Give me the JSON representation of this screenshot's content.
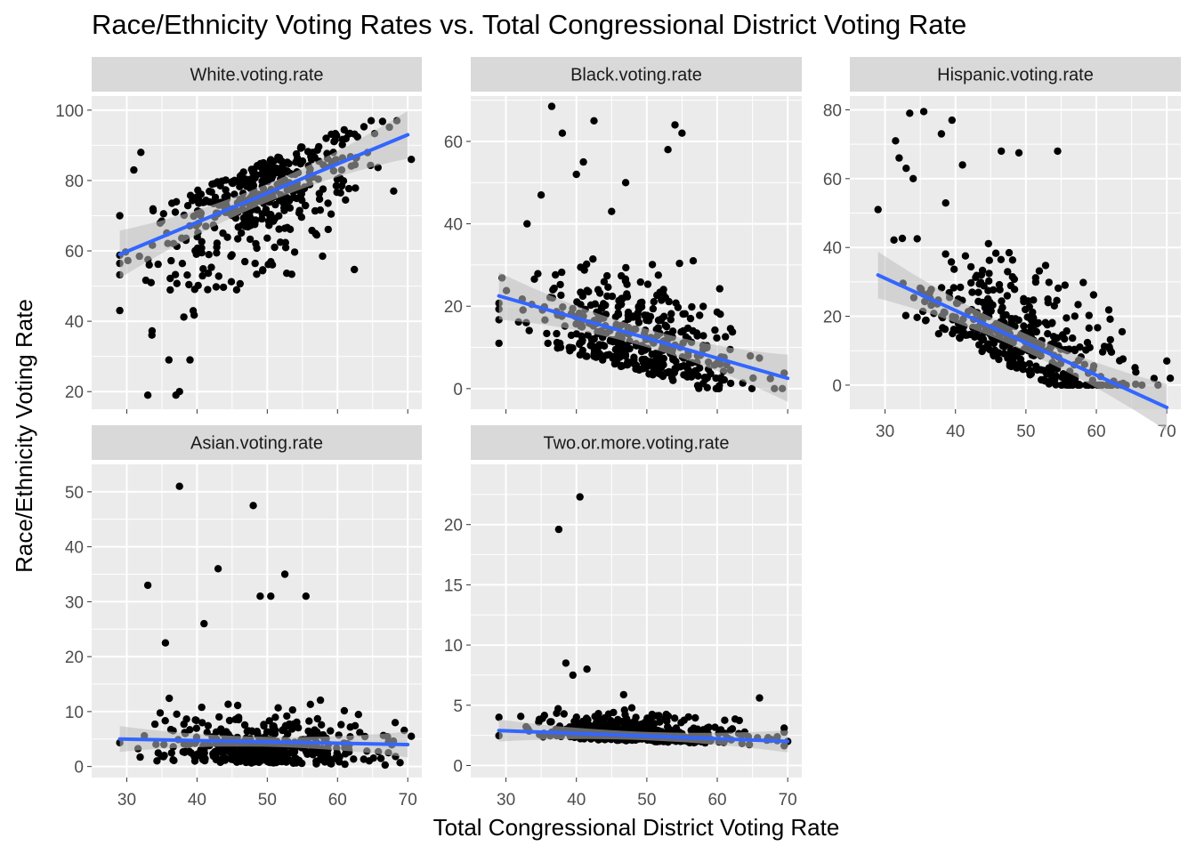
{
  "title": "Race/Ethnicity Voting Rates vs. Total Congressional District Voting Rate",
  "xlabel": "Total Congressional District Voting Rate",
  "ylabel": "Race/Ethnicity Voting Rate",
  "colors": {
    "panel_bg": "#ebebeb",
    "strip_bg": "#d9d9d9",
    "grid": "#ffffff",
    "point": "#000000",
    "fit_line": "#3366ff",
    "ribbon": "#bdbdbd"
  },
  "chart_data": [
    {
      "type": "scatter",
      "facet": "White.voting.rate",
      "xlim": [
        25,
        72
      ],
      "ylim": [
        15,
        104
      ],
      "x_ticks": [
        30,
        40,
        50,
        60,
        70
      ],
      "y_ticks": [
        20,
        40,
        60,
        80,
        100
      ],
      "x_tick_labels_shown": false,
      "trend": {
        "x": [
          29,
          70
        ],
        "y": [
          59,
          93
        ],
        "se": 2.6
      },
      "cluster": {
        "x_mean": 49,
        "x_sd": 7.5,
        "y_mean": 78,
        "y_sd": 15,
        "slope": 0.83,
        "n": 430,
        "ymin": 19,
        "ymax": 97
      },
      "highlights": [
        [
          37,
          19
        ],
        [
          37.5,
          20
        ],
        [
          33,
          19
        ],
        [
          70.5,
          86
        ],
        [
          68,
          77
        ],
        [
          29,
          70
        ],
        [
          31,
          83
        ],
        [
          32,
          88
        ],
        [
          36,
          29
        ],
        [
          39,
          29
        ]
      ]
    },
    {
      "type": "scatter",
      "facet": "Black.voting.rate",
      "xlim": [
        25,
        72
      ],
      "ylim": [
        -5,
        71
      ],
      "x_ticks": [
        30,
        40,
        50,
        60,
        70
      ],
      "y_ticks": [
        0,
        20,
        40,
        60
      ],
      "x_tick_labels_shown": false,
      "trend": {
        "x": [
          29,
          70
        ],
        "y": [
          22.5,
          2.5
        ],
        "se": 2.2
      },
      "cluster": {
        "x_mean": 49,
        "x_sd": 7.5,
        "y_mean": 10,
        "y_sd": 10,
        "slope": -0.49,
        "n": 430,
        "ymin": 0,
        "ymax": 68
      },
      "highlights": [
        [
          36.5,
          68.5
        ],
        [
          38,
          62
        ],
        [
          40,
          52
        ],
        [
          41,
          55
        ],
        [
          42.5,
          65
        ],
        [
          54,
          64
        ],
        [
          55,
          62
        ],
        [
          53,
          58
        ],
        [
          47,
          50
        ],
        [
          45,
          43
        ],
        [
          35,
          47
        ],
        [
          33,
          40
        ],
        [
          29,
          11
        ]
      ]
    },
    {
      "type": "scatter",
      "facet": "Hispanic.voting.rate",
      "xlim": [
        25,
        72
      ],
      "ylim": [
        -7,
        84
      ],
      "x_ticks": [
        30,
        40,
        50,
        60,
        70
      ],
      "y_ticks": [
        0,
        20,
        40,
        60,
        80
      ],
      "x_tick_labels_shown": true,
      "trend": {
        "x": [
          29,
          70
        ],
        "y": [
          32,
          -6.5
        ],
        "se": 2.6
      },
      "cluster": {
        "x_mean": 49,
        "x_sd": 7.5,
        "y_mean": 12,
        "y_sd": 13,
        "slope": -0.94,
        "n": 430,
        "ymin": 0,
        "ymax": 80
      },
      "highlights": [
        [
          33.5,
          79
        ],
        [
          35.5,
          79.5
        ],
        [
          39.5,
          77
        ],
        [
          38,
          73
        ],
        [
          31.5,
          71
        ],
        [
          32,
          66
        ],
        [
          33,
          63
        ],
        [
          34,
          60
        ],
        [
          29,
          51
        ],
        [
          46.5,
          68
        ],
        [
          49,
          67.5
        ],
        [
          54.5,
          68
        ],
        [
          41,
          64
        ],
        [
          70,
          7
        ],
        [
          70.5,
          2
        ]
      ]
    },
    {
      "type": "scatter",
      "facet": "Asian.voting.rate",
      "xlim": [
        25,
        72
      ],
      "ylim": [
        -2,
        55
      ],
      "x_ticks": [
        30,
        40,
        50,
        60,
        70
      ],
      "y_ticks": [
        0,
        10,
        20,
        30,
        40,
        50
      ],
      "x_tick_labels_shown": true,
      "trend": {
        "x": [
          29,
          70
        ],
        "y": [
          5,
          4
        ],
        "se": 0.9
      },
      "cluster": {
        "x_mean": 49,
        "x_sd": 7.5,
        "y_mean": 3,
        "y_sd": 4,
        "slope": -0.02,
        "n": 430,
        "ymin": 0,
        "ymax": 51
      },
      "highlights": [
        [
          37.5,
          51
        ],
        [
          48,
          47.5
        ],
        [
          43,
          36
        ],
        [
          52.5,
          35
        ],
        [
          33,
          33
        ],
        [
          49,
          31
        ],
        [
          50.5,
          31
        ],
        [
          55.5,
          31
        ],
        [
          41,
          26
        ],
        [
          35.5,
          22.5
        ],
        [
          70.5,
          5.5
        ]
      ]
    },
    {
      "type": "scatter",
      "facet": "Two.or.more.voting.rate",
      "xlim": [
        25,
        72
      ],
      "ylim": [
        -1,
        25
      ],
      "x_ticks": [
        30,
        40,
        50,
        60,
        70
      ],
      "y_ticks": [
        0,
        5,
        10,
        15,
        20
      ],
      "x_tick_labels_shown": true,
      "trend": {
        "x": [
          29,
          70
        ],
        "y": [
          2.9,
          2.0
        ],
        "se": 0.35
      },
      "cluster": {
        "x_mean": 49,
        "x_sd": 7.5,
        "y_mean": 2.6,
        "y_sd": 1.0,
        "slope": -0.02,
        "n": 430,
        "ymin": 0,
        "ymax": 22.3
      },
      "highlights": [
        [
          40.5,
          22.3
        ],
        [
          37.5,
          19.6
        ],
        [
          38.5,
          8.5
        ],
        [
          41.5,
          8
        ],
        [
          39.5,
          7.5
        ],
        [
          29,
          4
        ],
        [
          66,
          5.6
        ],
        [
          70,
          2
        ]
      ]
    }
  ]
}
